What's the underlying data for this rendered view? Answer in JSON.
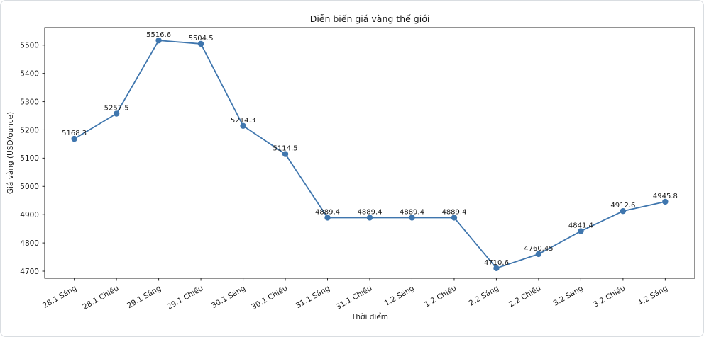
{
  "chart_data": {
    "type": "line",
    "title": "Diễn biến giá vàng thế giới",
    "xlabel": "Thời điểm",
    "ylabel": "Giá vàng (USD/ounce)",
    "categories": [
      "28.1 Sáng",
      "28.1 Chiều",
      "29.1 Sáng",
      "29.1 Chiều",
      "30.1 Sáng",
      "30.1 Chiều",
      "31.1 Sáng",
      "31.1 Chiều",
      "1.2 Sáng",
      "1.2 Chiều",
      "2.2 Sáng",
      "2.2 Chiều",
      "3.2 Sáng",
      "3.2 Chiều",
      "4.2 Sáng"
    ],
    "values": [
      5168.3,
      5257.5,
      5516.6,
      5504.5,
      5214.3,
      5114.5,
      4889.4,
      4889.4,
      4889.4,
      4889.4,
      4710.6,
      4760.45,
      4841.4,
      4912.6,
      4945.8
    ],
    "point_labels": [
      "5168.3",
      "5257.5",
      "5516.6",
      "5504.5",
      "5214.3",
      "5114.5",
      "4889.4",
      "4889.4",
      "4889.4",
      "4889.4",
      "4710.6",
      "4760.45",
      "4841.4",
      "4912.6",
      "4945.8"
    ],
    "yticks": [
      4700,
      4800,
      4900,
      5000,
      5100,
      5200,
      5300,
      5400,
      5500
    ],
    "ylim": [
      4675,
      5562
    ],
    "grid": false,
    "legend": null,
    "line_color": "#3f76ae",
    "marker": "circle",
    "axis_color": "#262626",
    "text_color": "#1a1a1a"
  }
}
